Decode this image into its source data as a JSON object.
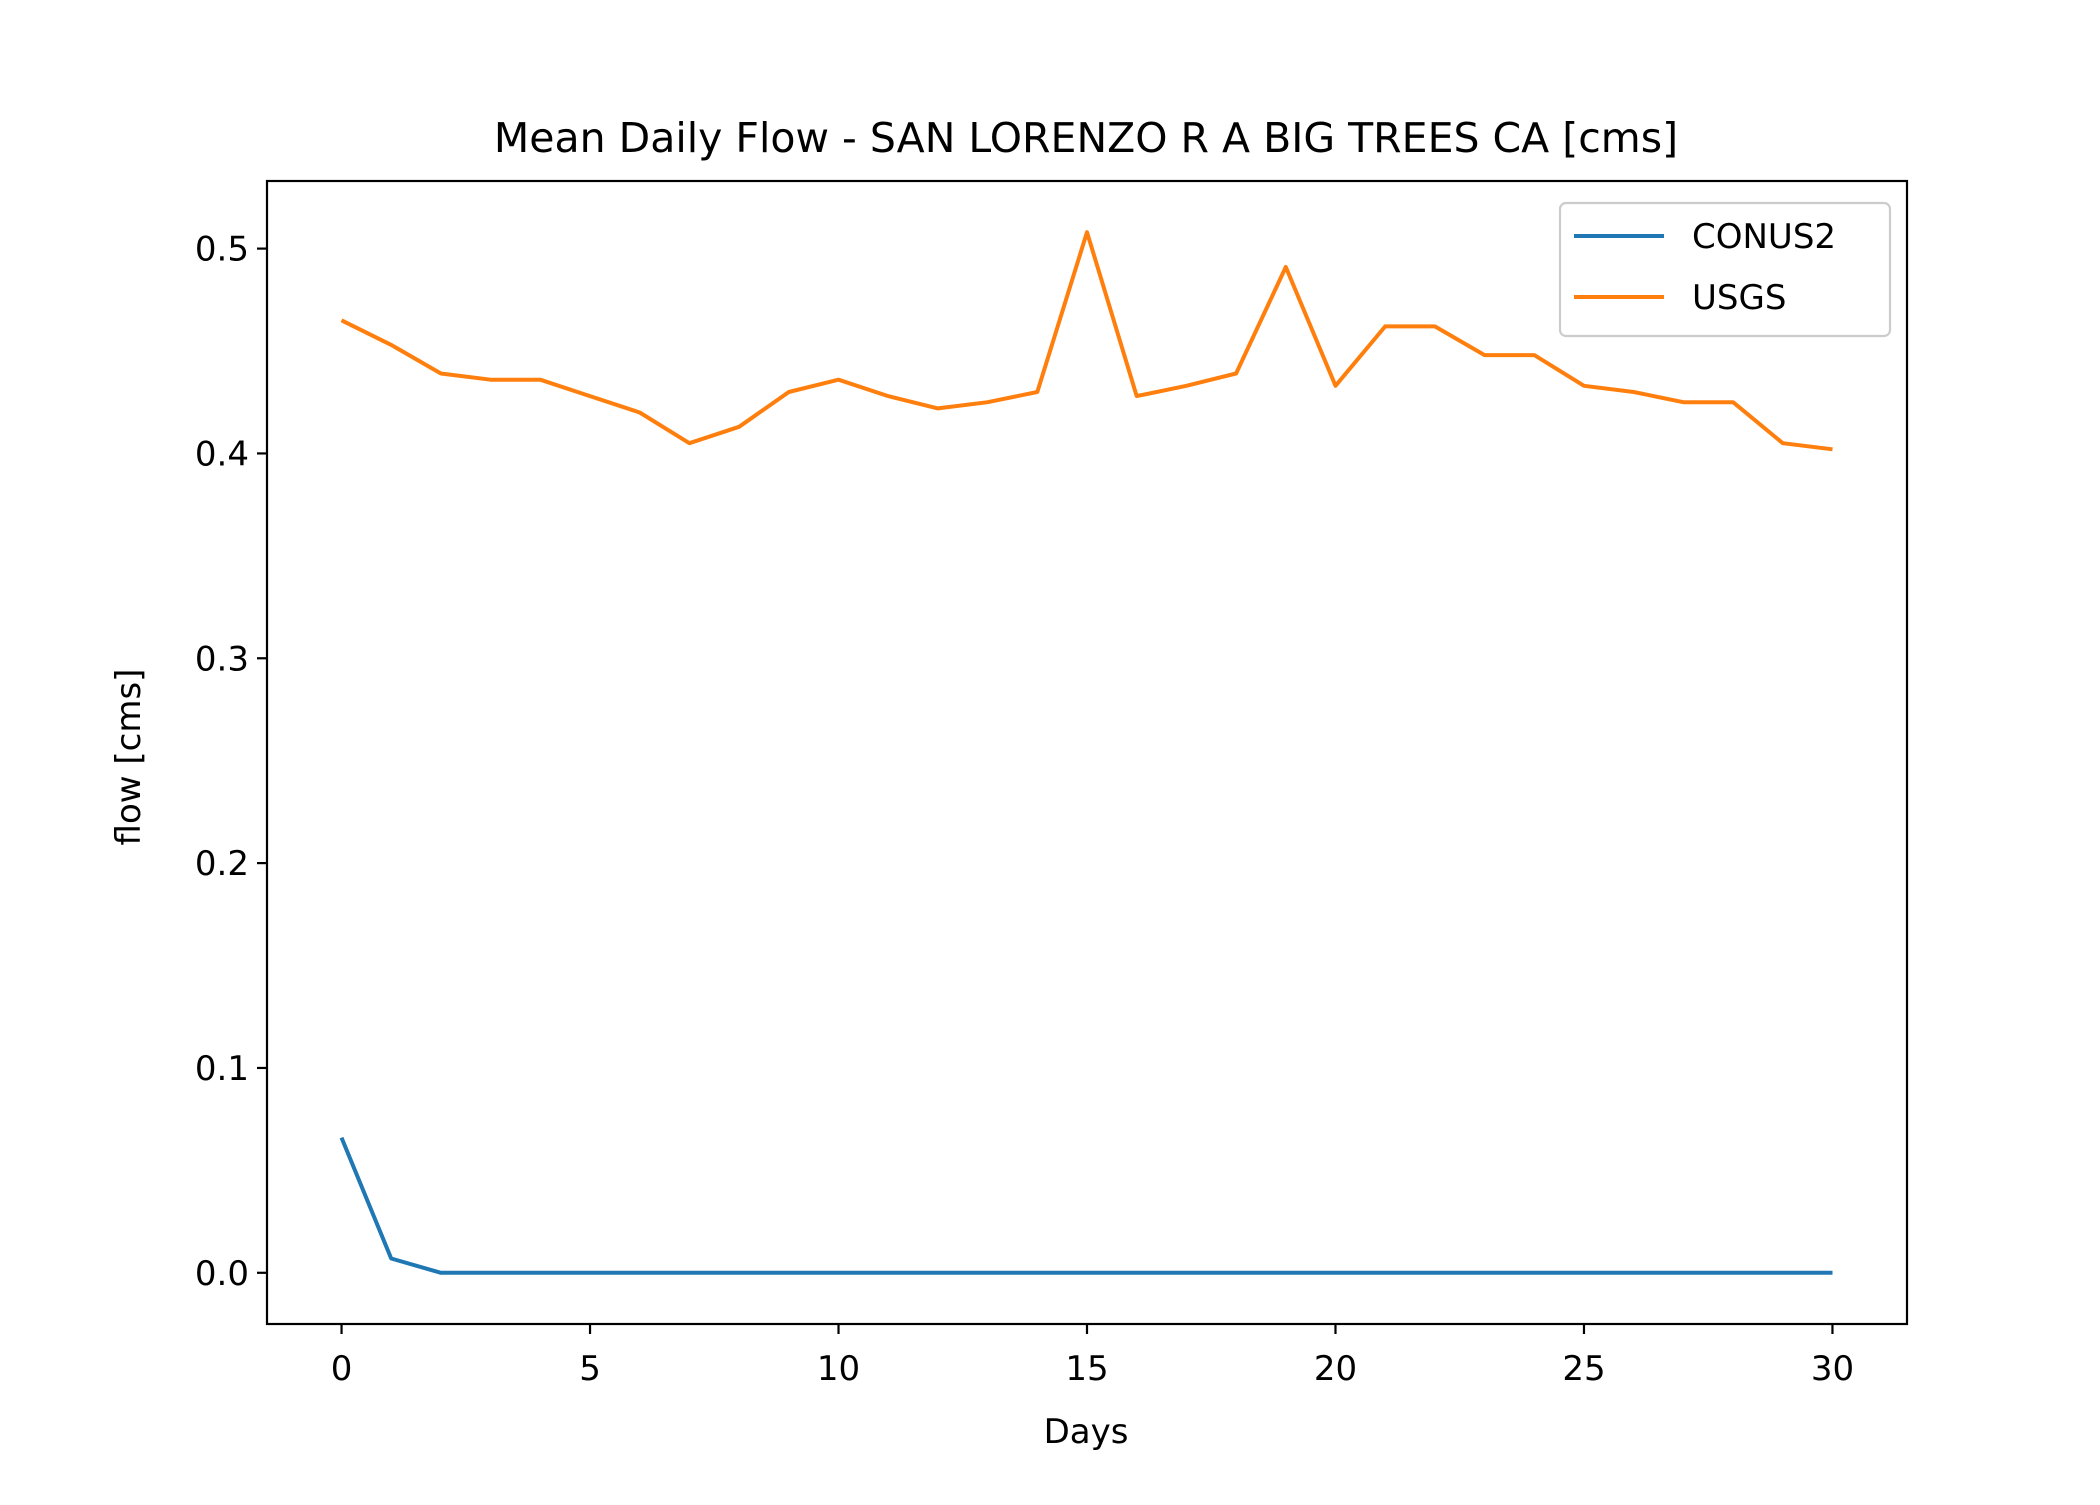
{
  "chart_data": {
    "type": "line",
    "title": "Mean Daily Flow - SAN LORENZO R A BIG TREES CA [cms]",
    "xlabel": "Days",
    "ylabel": "flow [cms]",
    "xlim": [
      -1.5,
      31.5
    ],
    "ylim": [
      -0.025,
      0.533
    ],
    "xticks": [
      0,
      5,
      10,
      15,
      20,
      25,
      30
    ],
    "xtick_labels": [
      "0",
      "5",
      "10",
      "15",
      "20",
      "25",
      "30"
    ],
    "yticks": [
      0.0,
      0.1,
      0.2,
      0.3,
      0.4,
      0.5
    ],
    "ytick_labels": [
      "0.0",
      "0.1",
      "0.2",
      "0.3",
      "0.4",
      "0.5"
    ],
    "grid": false,
    "legend_position": "top-right",
    "x": [
      0,
      1,
      2,
      3,
      4,
      5,
      6,
      7,
      8,
      9,
      10,
      11,
      12,
      13,
      14,
      15,
      16,
      17,
      18,
      19,
      20,
      21,
      22,
      23,
      24,
      25,
      26,
      27,
      28,
      29,
      30
    ],
    "series": [
      {
        "name": "CONUS2",
        "color": "#1f77b4",
        "values": [
          0.066,
          0.007,
          0.0,
          0.0,
          0.0,
          0.0,
          0.0,
          0.0,
          0.0,
          0.0,
          0.0,
          0.0,
          0.0,
          0.0,
          0.0,
          0.0,
          0.0,
          0.0,
          0.0,
          0.0,
          0.0,
          0.0,
          0.0,
          0.0,
          0.0,
          0.0,
          0.0,
          0.0,
          0.0,
          0.0,
          0.0
        ]
      },
      {
        "name": "USGS",
        "color": "#ff7f0e",
        "values": [
          0.465,
          0.453,
          0.439,
          0.436,
          0.436,
          0.428,
          0.42,
          0.405,
          0.413,
          0.43,
          0.436,
          0.428,
          0.422,
          0.425,
          0.43,
          0.508,
          0.428,
          0.433,
          0.439,
          0.491,
          0.433,
          0.462,
          0.462,
          0.448,
          0.448,
          0.433,
          0.43,
          0.425,
          0.425,
          0.405,
          0.402
        ]
      }
    ]
  }
}
